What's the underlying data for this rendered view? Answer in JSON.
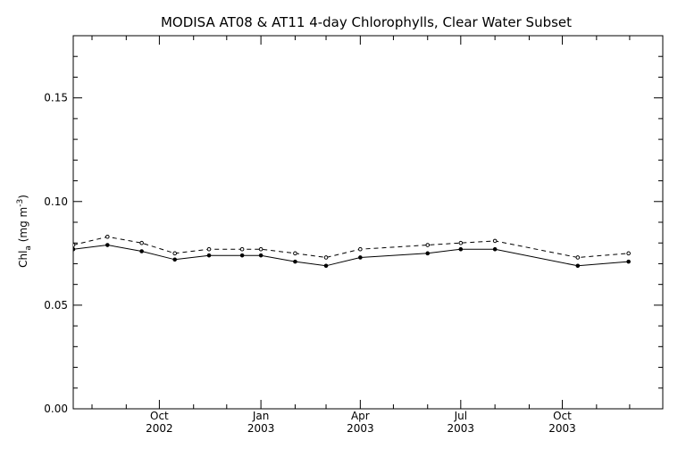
{
  "chart_data": {
    "type": "line",
    "title": "MODISA AT08 & AT11 4-day Chlorophylls, Clear Water Subset",
    "xlabel": "",
    "ylabel": "Chl_a (mg m^-3)",
    "ylabel_parts": {
      "base": "Chl",
      "subscript": "a",
      "unit_open": " (mg m",
      "unit_superscript": "-3",
      "unit_close": ")"
    },
    "ylim": [
      0.0,
      0.18
    ],
    "yticks": [
      0.0,
      0.05,
      0.1,
      0.15
    ],
    "ytick_labels": [
      "0.00",
      "0.05",
      "0.10",
      "0.15"
    ],
    "xlim": [
      "2002-07-15",
      "2003-12-31"
    ],
    "xticks": [
      {
        "date": "2002-10-01",
        "label_line1": "Oct",
        "label_line2": "2002"
      },
      {
        "date": "2003-01-01",
        "label_line1": "Jan",
        "label_line2": "2003"
      },
      {
        "date": "2003-04-01",
        "label_line1": "Apr",
        "label_line2": "2003"
      },
      {
        "date": "2003-07-01",
        "label_line1": "Jul",
        "label_line2": "2003"
      },
      {
        "date": "2003-10-01",
        "label_line1": "Oct",
        "label_line2": "2003"
      }
    ],
    "grid": false,
    "legend": "none",
    "series": [
      {
        "style": "dashed",
        "color": "#000000",
        "points": [
          {
            "x": "2002-07-15",
            "y": 0.079
          },
          {
            "x": "2002-08-15",
            "y": 0.083
          },
          {
            "x": "2002-09-15",
            "y": 0.08
          },
          {
            "x": "2002-10-15",
            "y": 0.075
          },
          {
            "x": "2002-11-15",
            "y": 0.077
          },
          {
            "x": "2002-12-15",
            "y": 0.077
          },
          {
            "x": "2003-01-01",
            "y": 0.077
          },
          {
            "x": "2003-02-01",
            "y": 0.075
          },
          {
            "x": "2003-03-01",
            "y": 0.073
          },
          {
            "x": "2003-04-01",
            "y": 0.077
          },
          {
            "x": "2003-06-01",
            "y": 0.079
          },
          {
            "x": "2003-07-01",
            "y": 0.08
          },
          {
            "x": "2003-08-01",
            "y": 0.081
          },
          {
            "x": "2003-10-15",
            "y": 0.073
          },
          {
            "x": "2003-11-30",
            "y": 0.075
          }
        ]
      },
      {
        "style": "solid",
        "color": "#000000",
        "points": [
          {
            "x": "2002-07-15",
            "y": 0.077
          },
          {
            "x": "2002-08-15",
            "y": 0.079
          },
          {
            "x": "2002-09-15",
            "y": 0.076
          },
          {
            "x": "2002-10-15",
            "y": 0.072
          },
          {
            "x": "2002-11-15",
            "y": 0.074
          },
          {
            "x": "2002-12-15",
            "y": 0.074
          },
          {
            "x": "2003-01-01",
            "y": 0.074
          },
          {
            "x": "2003-02-01",
            "y": 0.071
          },
          {
            "x": "2003-03-01",
            "y": 0.069
          },
          {
            "x": "2003-04-01",
            "y": 0.073
          },
          {
            "x": "2003-06-01",
            "y": 0.075
          },
          {
            "x": "2003-07-01",
            "y": 0.077
          },
          {
            "x": "2003-08-01",
            "y": 0.077
          },
          {
            "x": "2003-10-15",
            "y": 0.069
          },
          {
            "x": "2003-11-30",
            "y": 0.071
          }
        ]
      }
    ]
  }
}
